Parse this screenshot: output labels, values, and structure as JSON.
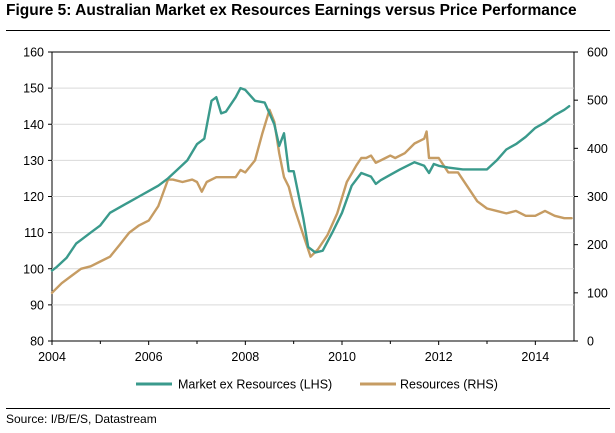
{
  "figure": {
    "title": "Figure 5: Australian Market ex Resources Earnings versus Price Performance",
    "source": "Source:  I/B/E/S, Datastream"
  },
  "chart_data": {
    "type": "line",
    "title": "Figure 5: Australian Market ex Resources Earnings versus Price Performance",
    "xlabel": "",
    "ylabel_left": "",
    "ylabel_right": "",
    "xlim": [
      2004,
      2014.8
    ],
    "ylim_left": [
      80,
      160
    ],
    "ylim_right": [
      0,
      600
    ],
    "x_ticks": [
      2004,
      2006,
      2008,
      2010,
      2012,
      2014
    ],
    "y_ticks_left": [
      80,
      90,
      100,
      110,
      120,
      130,
      140,
      150,
      160
    ],
    "y_ticks_right": [
      0,
      100,
      200,
      300,
      400,
      500,
      600
    ],
    "legend_position": "bottom",
    "series": [
      {
        "name": "Market ex Resources (LHS)",
        "axis": "left",
        "color": "#3a9a8c",
        "x": [
          2004.0,
          2004.1,
          2004.3,
          2004.5,
          2004.6,
          2004.8,
          2005.0,
          2005.2,
          2005.4,
          2005.6,
          2005.8,
          2006.0,
          2006.2,
          2006.4,
          2006.6,
          2006.8,
          2007.0,
          2007.15,
          2007.3,
          2007.4,
          2007.5,
          2007.6,
          2007.8,
          2007.9,
          2008.0,
          2008.2,
          2008.4,
          2008.5,
          2008.6,
          2008.7,
          2008.8,
          2008.9,
          2009.0,
          2009.2,
          2009.3,
          2009.45,
          2009.6,
          2009.8,
          2010.0,
          2010.2,
          2010.4,
          2010.6,
          2010.7,
          2010.8,
          2011.0,
          2011.2,
          2011.5,
          2011.7,
          2011.8,
          2011.9,
          2012.0,
          2012.2,
          2012.5,
          2012.8,
          2013.0,
          2013.2,
          2013.4,
          2013.6,
          2013.8,
          2014.0,
          2014.2,
          2014.4,
          2014.6,
          2014.7
        ],
        "values": [
          99.5,
          100.5,
          103,
          107,
          108,
          110,
          112,
          115.5,
          117,
          118.5,
          120,
          121.5,
          123,
          125,
          127.5,
          130,
          134.5,
          136,
          146.5,
          147.5,
          143,
          143.5,
          147.5,
          150,
          149.5,
          146.5,
          146,
          143,
          140,
          134,
          137.5,
          127,
          127,
          114,
          106,
          104.5,
          105,
          110,
          115.5,
          123,
          126.5,
          125.5,
          123.5,
          124.5,
          126,
          127.5,
          129.5,
          128.5,
          126.5,
          129,
          128.5,
          128,
          127.5,
          127.5,
          127.5,
          130,
          133,
          134.5,
          136.5,
          139,
          140.5,
          142.5,
          144,
          145
        ]
      },
      {
        "name": "Resources (RHS)",
        "axis": "right",
        "color": "#c69c63",
        "x": [
          2004.0,
          2004.2,
          2004.4,
          2004.6,
          2004.8,
          2005.0,
          2005.2,
          2005.4,
          2005.6,
          2005.8,
          2006.0,
          2006.2,
          2006.4,
          2006.5,
          2006.7,
          2006.9,
          2007.0,
          2007.1,
          2007.2,
          2007.4,
          2007.6,
          2007.8,
          2007.9,
          2008.0,
          2008.2,
          2008.35,
          2008.5,
          2008.6,
          2008.7,
          2008.8,
          2008.9,
          2009.0,
          2009.2,
          2009.35,
          2009.5,
          2009.7,
          2009.9,
          2010.1,
          2010.3,
          2010.4,
          2010.5,
          2010.6,
          2010.7,
          2010.9,
          2011.0,
          2011.1,
          2011.3,
          2011.5,
          2011.7,
          2011.75,
          2011.8,
          2012.0,
          2012.2,
          2012.4,
          2012.6,
          2012.8,
          2013.0,
          2013.2,
          2013.4,
          2013.6,
          2013.8,
          2014.0,
          2014.2,
          2014.4,
          2014.6,
          2014.75
        ],
        "values": [
          100,
          120,
          135,
          150,
          155,
          165,
          175,
          200,
          225,
          240,
          250,
          280,
          335,
          335,
          330,
          335,
          330,
          310,
          330,
          340,
          340,
          340,
          355,
          350,
          375,
          430,
          480,
          455,
          390,
          340,
          320,
          280,
          220,
          175,
          190,
          220,
          265,
          330,
          365,
          380,
          380,
          385,
          370,
          380,
          385,
          380,
          390,
          410,
          420,
          435,
          380,
          380,
          350,
          350,
          320,
          290,
          275,
          270,
          265,
          270,
          260,
          260,
          270,
          260,
          255,
          255
        ]
      }
    ]
  }
}
